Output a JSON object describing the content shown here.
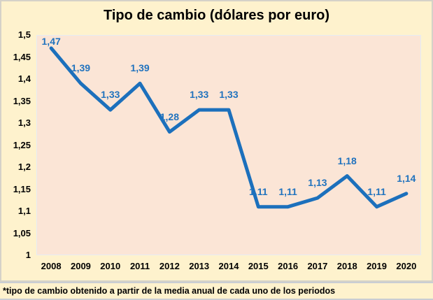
{
  "chart_data": {
    "type": "line",
    "title": "Tipo de cambio (dólares por euro)",
    "categories": [
      "2008",
      "2009",
      "2010",
      "2011",
      "2012",
      "2013",
      "2014",
      "2015",
      "2016",
      "2017",
      "2018",
      "2019",
      "2020"
    ],
    "values": [
      1.47,
      1.39,
      1.33,
      1.39,
      1.28,
      1.33,
      1.33,
      1.11,
      1.11,
      1.13,
      1.18,
      1.11,
      1.14
    ],
    "point_labels": [
      "1,47",
      "1,39",
      "1,33",
      "1,39",
      "1,28",
      "1,33",
      "1,33",
      "1,11",
      "1,11",
      "1,13",
      "1,18",
      "1,11",
      "1,14"
    ],
    "xlabel": "",
    "ylabel": "",
    "ylim": [
      1,
      1.5
    ],
    "ytick_labels": [
      "1",
      "1,05",
      "1,1",
      "1,15",
      "1,2",
      "1,25",
      "1,3",
      "1,35",
      "1,4",
      "1,45",
      "1,5"
    ],
    "grid": false,
    "legend": "none",
    "colors": {
      "line": "#1c70bc",
      "point_label": "#2173be",
      "plot_bg": "#fbe5d6",
      "chart_bg": "#fef2cd",
      "title": "#000000",
      "axis_text": "#000000"
    }
  },
  "footnote": "*tipo de cambio obtenido a partir de la media anual de cada uno de los periodos"
}
